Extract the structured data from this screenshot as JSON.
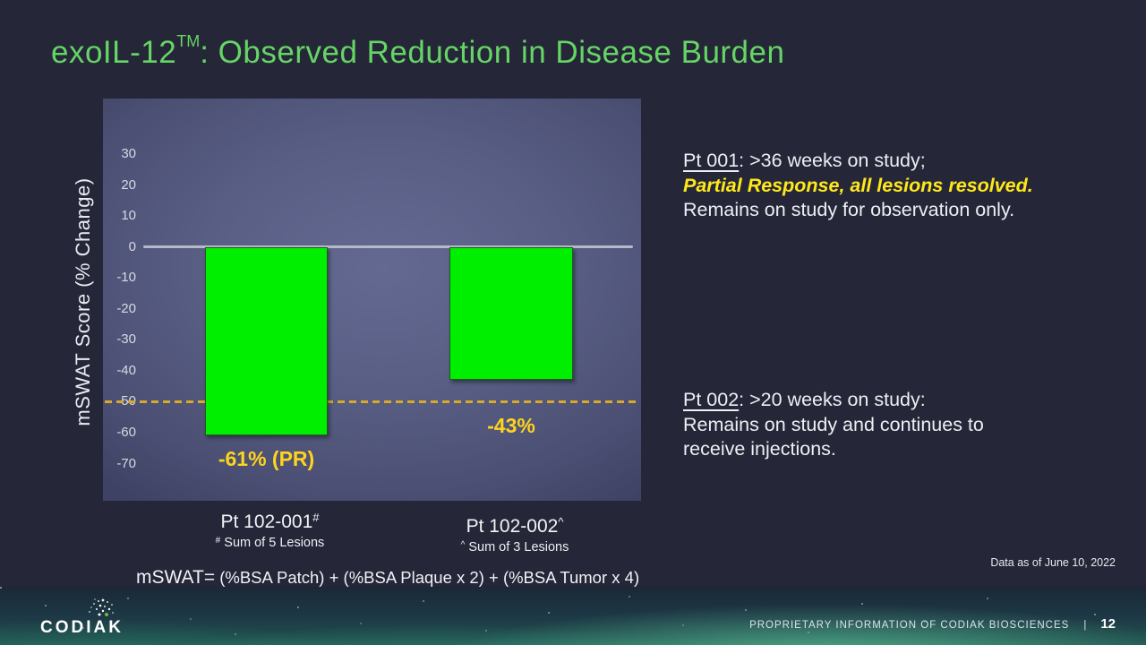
{
  "title": {
    "product": "exoIL-12",
    "trademark": "TM",
    "rest": ": Observed Reduction in Disease Burden",
    "color": "#65d565"
  },
  "chart_data": {
    "type": "bar",
    "ylabel": "mSWAT Score (% Change)",
    "categories": [
      "Pt 102-001",
      "Pt 102-002"
    ],
    "category_markers": [
      "#",
      "^"
    ],
    "category_footnote_markers": [
      "#",
      "^"
    ],
    "category_footnotes": [
      "Sum of 5 Lesions",
      "Sum of 3 Lesions"
    ],
    "values": [
      -61,
      -43
    ],
    "bar_labels": [
      "-61% (PR)",
      "-43%"
    ],
    "yticks": [
      30,
      20,
      10,
      0,
      -10,
      -20,
      -30,
      -40,
      -50,
      -60,
      -70
    ],
    "ylim": [
      -82,
      48
    ],
    "grid": false,
    "zero_line": true,
    "reference_line_value": -50,
    "legend": "none",
    "colors": {
      "bar": "#00ee00",
      "bar_border": "#1e5c1e",
      "bar_label": "#ffd41c",
      "reference_line": "#d9a92a",
      "zero_line": "#b5b9c9"
    }
  },
  "annotations": {
    "pt001": {
      "lead": "Pt 001",
      "lead_rest": ": >36 weeks on study;",
      "highlight": "Partial Response, all lesions resolved.",
      "tail": "Remains on study for observation only."
    },
    "pt002": {
      "lead": "Pt 002",
      "lead_rest": ": >20 weeks on study:",
      "tail_line1": "Remains on study and continues to",
      "tail_line2": "receive injections."
    }
  },
  "formula": {
    "lead": "mSWAT=",
    "rest": " (%BSA Patch) + (%BSA Plaque x 2) + (%BSA Tumor x 4)"
  },
  "data_note": "Data as of June 10, 2022",
  "footer": {
    "logo": "CODIAK",
    "proprietary": "PROPRIETARY INFORMATION OF CODIAK BIOSCIENCES",
    "separator": "|",
    "page": "12"
  }
}
